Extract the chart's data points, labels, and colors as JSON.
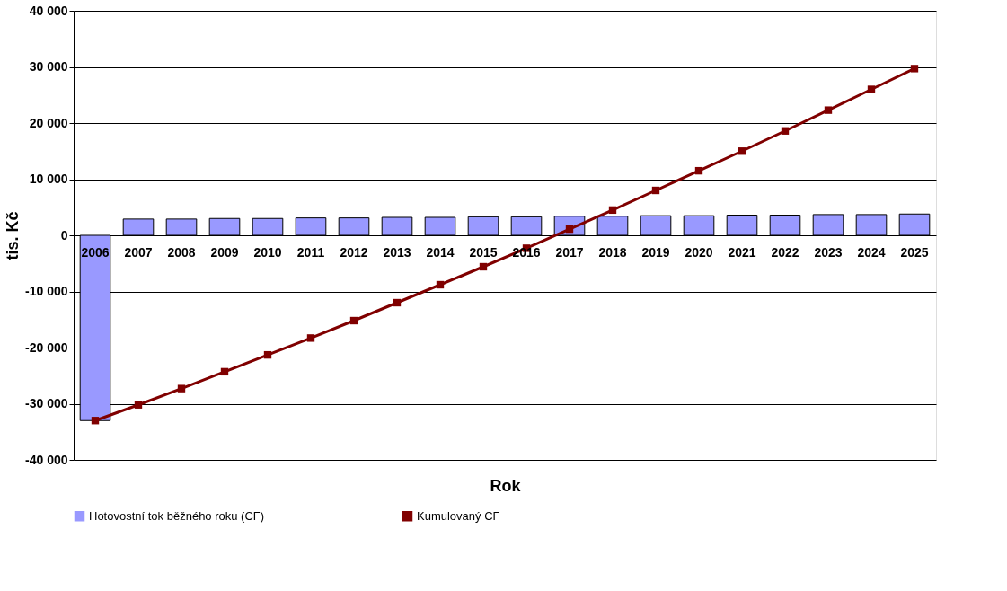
{
  "chart_data": {
    "type": "bar",
    "xlabel": "Rok",
    "ylabel": "tis. Kč",
    "categories": [
      "2006",
      "2007",
      "2008",
      "2009",
      "2010",
      "2011",
      "2012",
      "2013",
      "2014",
      "2015",
      "2016",
      "2017",
      "2018",
      "2019",
      "2020",
      "2021",
      "2022",
      "2023",
      "2024",
      "2025"
    ],
    "series": [
      {
        "name": "Hotovostní tok běžného roku (CF)",
        "color": "#9999ff",
        "values": [
          -33000,
          2900,
          2900,
          3000,
          3000,
          3100,
          3100,
          3200,
          3200,
          3300,
          3300,
          3400,
          3400,
          3500,
          3500,
          3600,
          3600,
          3700,
          3700,
          3800
        ]
      },
      {
        "name": "Kumulovaný CF",
        "type": "line",
        "color": "#800000",
        "marker": "square",
        "line_style": "solid",
        "values": [
          -33000,
          -30200,
          -27300,
          -24300,
          -21300,
          -18300,
          -15200,
          -12000,
          -8800,
          -5600,
          -2300,
          1100,
          4500,
          8000,
          11500,
          15000,
          18600,
          22300,
          26000,
          29700
        ]
      }
    ],
    "ylim": [
      -40000,
      40000
    ],
    "yticks": [
      {
        "value": -40000,
        "label": "-40 000"
      },
      {
        "value": -30000,
        "label": "-30 000"
      },
      {
        "value": -20000,
        "label": "-20 000"
      },
      {
        "value": -10000,
        "label": "-10 000"
      },
      0,
      {
        "value": 10000,
        "label": "10 000"
      },
      {
        "value": 20000,
        "label": "20 000"
      },
      {
        "value": 30000,
        "label": "30 000"
      },
      {
        "value": 40000,
        "label": "40 000"
      }
    ],
    "grid": "y",
    "legend": "bottom"
  }
}
